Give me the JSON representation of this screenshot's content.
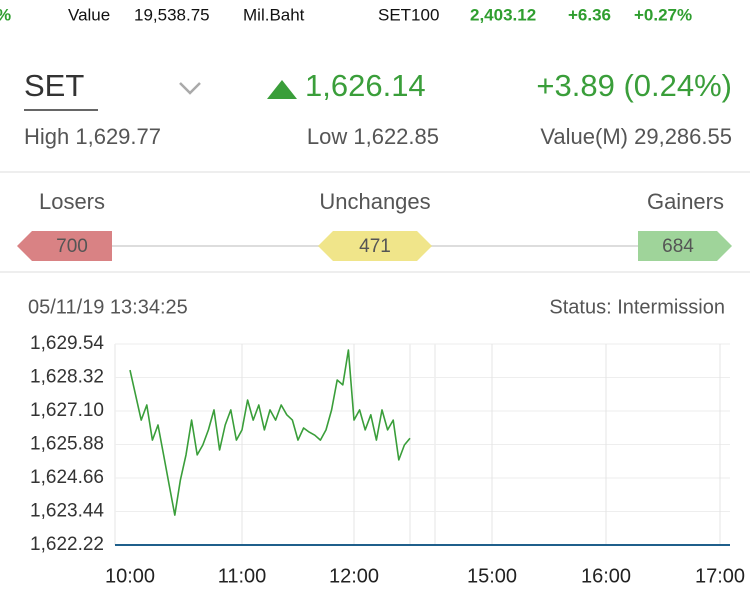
{
  "ticker": {
    "prev_change": "%",
    "value_label": "Value",
    "value": "19,538.75",
    "unit": "Mil.Baht",
    "index": "SET100",
    "index_value": "2,403.12",
    "change": "+6.36",
    "change_pct": "+0.27%"
  },
  "header": {
    "index": "SET",
    "last": "1,626.14",
    "change": "+3.89 (0.24%)",
    "high": "High 1,629.77",
    "low": "Low 1,622.85",
    "value": "Value(M) 29,286.55"
  },
  "breadth": {
    "losers_label": "Losers",
    "losers": 700,
    "unchanged_label": "Unchanges",
    "unchanged": 471,
    "gainers_label": "Gainers",
    "gainers": 684
  },
  "chart_data": {
    "type": "line",
    "timestamp": "05/11/19 13:34:25",
    "status": "Status: Intermission",
    "x": [
      "10:00",
      "10:03",
      "10:06",
      "10:09",
      "10:12",
      "10:15",
      "10:18",
      "10:21",
      "10:24",
      "10:27",
      "10:30",
      "10:33",
      "10:36",
      "10:39",
      "10:42",
      "10:45",
      "10:48",
      "10:51",
      "10:54",
      "10:57",
      "11:00",
      "11:03",
      "11:06",
      "11:09",
      "11:12",
      "11:15",
      "11:18",
      "11:21",
      "11:24",
      "11:27",
      "11:30",
      "11:33",
      "11:36",
      "11:39",
      "11:42",
      "11:45",
      "11:48",
      "11:51",
      "11:54",
      "11:57",
      "12:00",
      "12:03",
      "12:06",
      "12:09",
      "12:12",
      "12:15",
      "12:18",
      "12:21",
      "12:24",
      "12:27",
      "12:30"
    ],
    "series": [
      {
        "color": "#3a9e3a",
        "values": [
          1628.59,
          1627.68,
          1626.77,
          1627.32,
          1626.04,
          1626.59,
          1625.5,
          1624.4,
          1623.31,
          1624.59,
          1625.5,
          1626.77,
          1625.5,
          1625.86,
          1626.41,
          1627.14,
          1625.68,
          1626.59,
          1627.14,
          1626.04,
          1626.41,
          1627.5,
          1626.77,
          1627.32,
          1626.41,
          1627.14,
          1626.77,
          1627.32,
          1626.96,
          1626.77,
          1626.04,
          1626.48,
          1626.33,
          1626.22,
          1626.04,
          1626.41,
          1627.14,
          1628.23,
          1628.05,
          1629.32,
          1626.77,
          1627.14,
          1626.41,
          1626.96,
          1626.04,
          1627.14,
          1626.41,
          1626.77,
          1625.32,
          1625.86,
          1626.11
        ]
      }
    ],
    "ylim": [
      1622.22,
      1629.54
    ],
    "yticks": [
      {
        "value": 1622.22,
        "label": "1,622.22"
      },
      {
        "value": 1623.44,
        "label": "1,623.44"
      },
      {
        "value": 1624.66,
        "label": "1,624.66"
      },
      {
        "value": 1625.88,
        "label": "1,625.88"
      },
      {
        "value": 1627.1,
        "label": "1,627.10"
      },
      {
        "value": 1628.32,
        "label": "1,628.32"
      },
      {
        "value": 1629.54,
        "label": "1,629.54"
      }
    ],
    "xticks": [
      "10:00",
      "11:00",
      "12:00",
      "15:00",
      "16:00",
      "17:00"
    ],
    "grid": true
  }
}
